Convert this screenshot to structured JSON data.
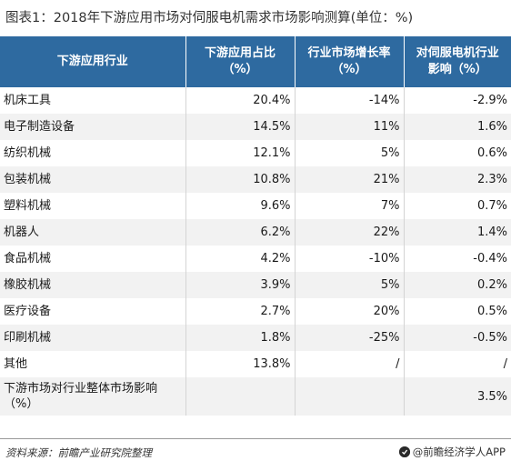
{
  "title": "图表1：2018年下游应用市场对伺服电机需求市场影响测算(单位：%)",
  "table": {
    "headers": [
      {
        "line1": "下游应用行业",
        "line2": ""
      },
      {
        "line1": "下游应用占比",
        "line2": "（%）"
      },
      {
        "line1": "行业市场增长率",
        "line2": "（%）"
      },
      {
        "line1": "对伺服电机行业",
        "line2": "影响（%）"
      }
    ],
    "rows": [
      {
        "industry": "机床工具",
        "share": "20.4%",
        "growth": "-14%",
        "impact": "-2.9%"
      },
      {
        "industry": "电子制造设备",
        "share": "14.5%",
        "growth": "11%",
        "impact": "1.6%"
      },
      {
        "industry": "纺织机械",
        "share": "12.1%",
        "growth": "5%",
        "impact": "0.6%"
      },
      {
        "industry": "包装机械",
        "share": "10.8%",
        "growth": "21%",
        "impact": "2.3%"
      },
      {
        "industry": "塑料机械",
        "share": "9.6%",
        "growth": "7%",
        "impact": "0.7%"
      },
      {
        "industry": "机器人",
        "share": "6.2%",
        "growth": "22%",
        "impact": "1.4%"
      },
      {
        "industry": "食品机械",
        "share": "4.2%",
        "growth": "-10%",
        "impact": "-0.4%"
      },
      {
        "industry": "橡胶机械",
        "share": "3.9%",
        "growth": "5%",
        "impact": "0.2%"
      },
      {
        "industry": "医疗设备",
        "share": "2.7%",
        "growth": "20%",
        "impact": "0.5%"
      },
      {
        "industry": "印刷机械",
        "share": "1.8%",
        "growth": "-25%",
        "impact": "-0.5%"
      },
      {
        "industry": "其他",
        "share": "13.8%",
        "growth": "/",
        "impact": "/"
      }
    ],
    "total": {
      "label_line1": "下游市场对行业整体市场影响",
      "label_line2": "（%）",
      "share": "",
      "growth": "",
      "impact": "3.5%"
    }
  },
  "footer": {
    "source": "资料来源：前瞻产业研究院整理",
    "brand": "@前瞻经济学人APP",
    "brand_icon": "qianzhan-logo-icon"
  },
  "colors": {
    "header_bg": "#2e6aa0",
    "stripe": "#f2f2f2"
  }
}
